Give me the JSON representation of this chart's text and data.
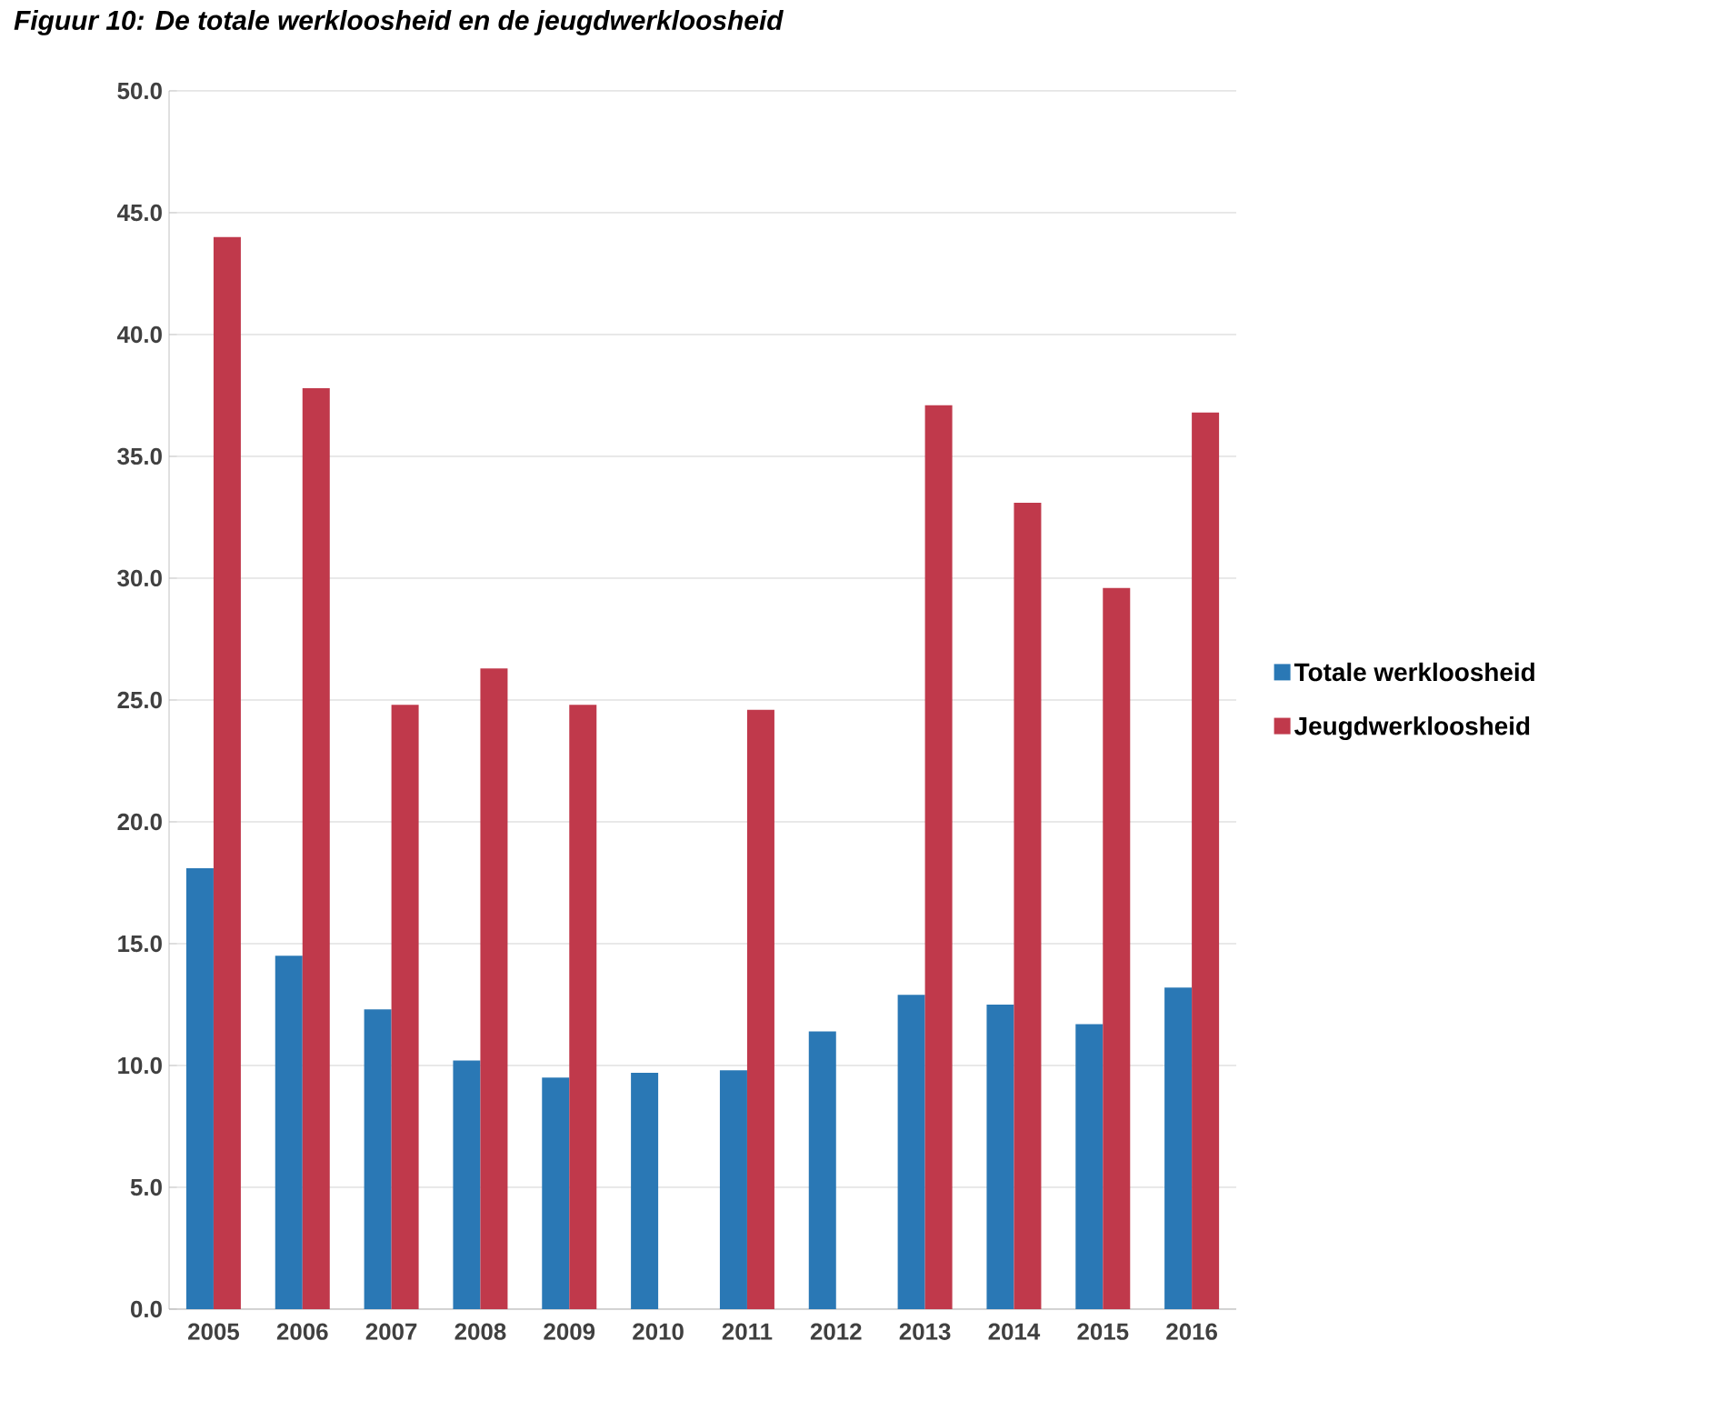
{
  "chart_data": {
    "type": "bar",
    "title": "Figuur 10: De totale werkloosheid en de jeugdwerkloosheid",
    "categories": [
      "2005",
      "2006",
      "2007",
      "2008",
      "2009",
      "2010",
      "2011",
      "2012",
      "2013",
      "2014",
      "2015",
      "2016"
    ],
    "series": [
      {
        "name": "Totale werkloosheid",
        "color": "#2a78b5",
        "values": [
          18.1,
          14.5,
          12.3,
          10.2,
          9.5,
          9.7,
          9.8,
          11.4,
          12.9,
          12.5,
          11.7,
          13.2
        ]
      },
      {
        "name": "Jeugdwerkloosheid",
        "color": "#c0394b",
        "values": [
          44.0,
          37.8,
          24.8,
          26.3,
          24.8,
          null,
          24.6,
          null,
          37.1,
          33.1,
          29.6,
          36.8
        ]
      }
    ],
    "ylim": [
      0,
      50
    ],
    "yticks": [
      {
        "value": 0,
        "label": "0.0"
      },
      {
        "value": 5,
        "label": "5.0"
      },
      {
        "value": 10,
        "label": "10.0"
      },
      {
        "value": 15,
        "label": "15.0"
      },
      {
        "value": 20,
        "label": "20.0"
      },
      {
        "value": 25,
        "label": "25.0"
      },
      {
        "value": 30,
        "label": "30.0"
      },
      {
        "value": 35,
        "label": "35.0"
      },
      {
        "value": 40,
        "label": "40.0"
      },
      {
        "value": 45,
        "label": "45.0"
      },
      {
        "value": 50,
        "label": "50.0"
      }
    ],
    "grid": "y",
    "legend": "right"
  }
}
